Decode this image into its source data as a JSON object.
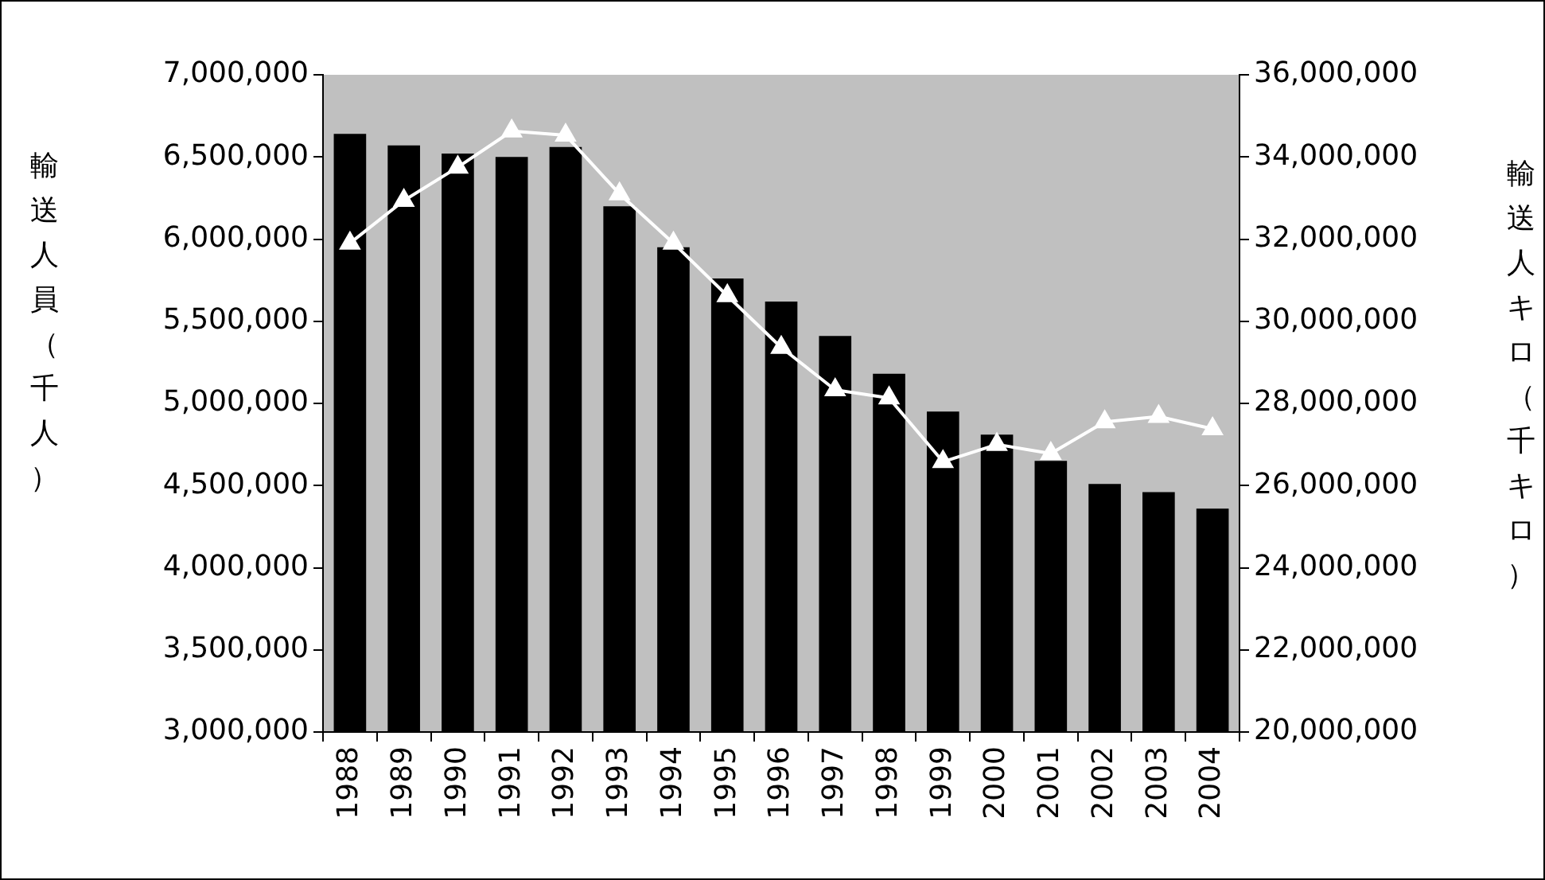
{
  "chart_data": {
    "type": "bar",
    "ylabel": "輸送人員（千人）",
    "y2label": "輸送人キロ（千キロ）",
    "categories": [
      "1988",
      "1989",
      "1990",
      "1991",
      "1992",
      "1993",
      "1994",
      "1995",
      "1996",
      "1997",
      "1998",
      "1999",
      "2000",
      "2001",
      "2002",
      "2003",
      "2004"
    ],
    "series": [
      {
        "color": "#000000",
        "values": [
          6640000,
          6570000,
          6520000,
          6500000,
          6560000,
          6200000,
          5950000,
          5760000,
          5620000,
          5410000,
          5180000,
          4950000,
          4810000,
          4650000,
          4510000,
          4460000,
          4360000
        ]
      },
      {
        "type": "line",
        "axis": "y2",
        "color": "#ffffff",
        "marker": "triangle",
        "values": [
          31900000,
          32940000,
          33750000,
          34630000,
          34530000,
          33100000,
          31900000,
          30620000,
          29360000,
          28330000,
          28130000,
          26580000,
          27000000,
          26780000,
          27550000,
          27680000,
          27380000
        ]
      }
    ],
    "ylim": [
      3000000,
      7000000
    ],
    "yticks": [
      {
        "value": 3000000,
        "label": "3,000,000"
      },
      {
        "value": 3500000,
        "label": "3,500,000"
      },
      {
        "value": 4000000,
        "label": "4,000,000"
      },
      {
        "value": 4500000,
        "label": "4,500,000"
      },
      {
        "value": 5000000,
        "label": "5,000,000"
      },
      {
        "value": 5500000,
        "label": "5,500,000"
      },
      {
        "value": 6000000,
        "label": "6,000,000"
      },
      {
        "value": 6500000,
        "label": "6,500,000"
      },
      {
        "value": 7000000,
        "label": "7,000,000"
      }
    ],
    "y2lim": [
      20000000,
      36000000
    ],
    "y2ticks": [
      {
        "value": 20000000,
        "label": "20,000,000"
      },
      {
        "value": 22000000,
        "label": "22,000,000"
      },
      {
        "value": 24000000,
        "label": "24,000,000"
      },
      {
        "value": 26000000,
        "label": "26,000,000"
      },
      {
        "value": 28000000,
        "label": "28,000,000"
      },
      {
        "value": 30000000,
        "label": "30,000,000"
      },
      {
        "value": 32000000,
        "label": "32,000,000"
      },
      {
        "value": 34000000,
        "label": "34,000,000"
      },
      {
        "value": 36000000,
        "label": "36,000,000"
      }
    ],
    "grid": false,
    "legend": false
  }
}
